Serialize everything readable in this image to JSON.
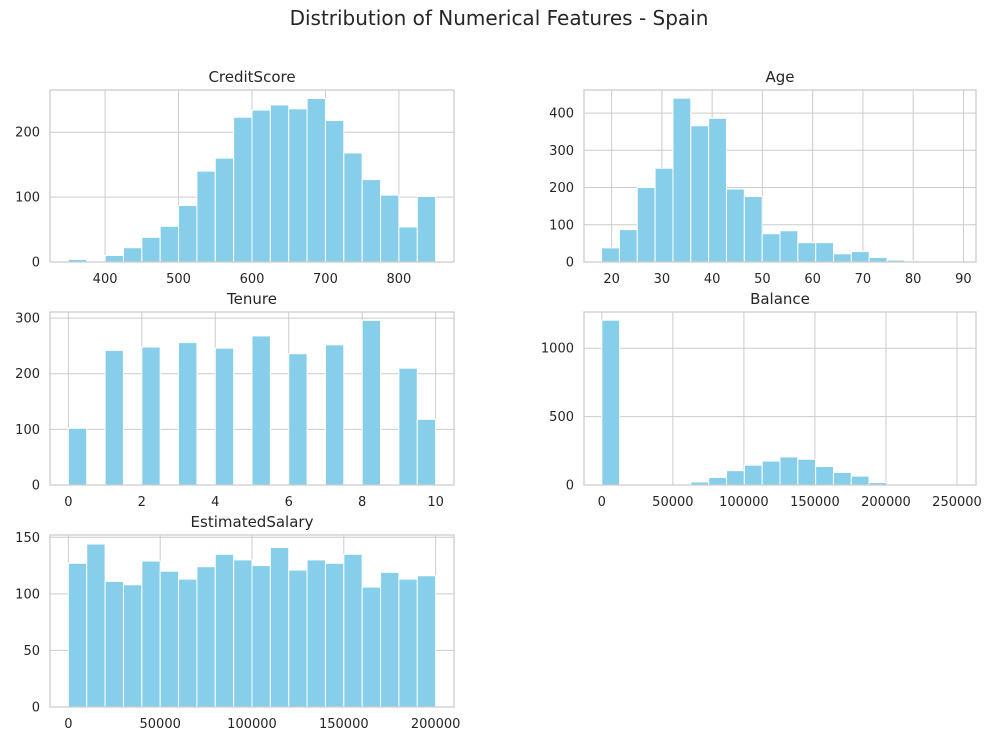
{
  "figure": {
    "title": "Distribution of Numerical Features - Spain",
    "bar_color": "#87CEEB",
    "grid_color": "#cccccc",
    "spine_color": "#cccccc"
  },
  "chart_data": [
    {
      "type": "bar",
      "title": "CreditScore",
      "bin_edges": [
        350,
        375,
        400,
        425,
        450,
        475,
        500,
        525,
        550,
        575,
        600,
        625,
        650,
        675,
        700,
        725,
        750,
        775,
        800,
        825,
        850
      ],
      "values": [
        4,
        0,
        10,
        22,
        38,
        55,
        87,
        140,
        160,
        223,
        234,
        242,
        236,
        252,
        218,
        168,
        127,
        103,
        54,
        101
      ],
      "xlim": [
        325,
        875
      ],
      "ylim": [
        0,
        265
      ],
      "xticks": [
        400,
        500,
        600,
        700,
        800
      ],
      "yticks": [
        0,
        100,
        200
      ],
      "grid": true
    },
    {
      "type": "bar",
      "title": "Age",
      "bin_edges": [
        18,
        21.55,
        25.1,
        28.65,
        32.2,
        35.75,
        39.3,
        42.85,
        46.4,
        49.95,
        53.5,
        57.05,
        60.6,
        64.15,
        67.7,
        71.25,
        74.8,
        78.35,
        81.9,
        85.45,
        89
      ],
      "values": [
        38,
        87,
        200,
        252,
        440,
        366,
        386,
        196,
        176,
        76,
        84,
        52,
        52,
        22,
        28,
        12,
        5,
        3,
        2,
        2
      ],
      "xlim": [
        14.5,
        92.5
      ],
      "ylim": [
        0,
        462
      ],
      "xticks": [
        20,
        30,
        40,
        50,
        60,
        70,
        80,
        90
      ],
      "yticks": [
        0,
        100,
        200,
        300,
        400
      ],
      "grid": true
    },
    {
      "type": "bar",
      "title": "Tenure",
      "bin_edges": [
        0,
        0.5,
        1,
        1.5,
        2,
        2.5,
        3,
        3.5,
        4,
        4.5,
        5,
        5.5,
        6,
        6.5,
        7,
        7.5,
        8,
        8.5,
        9,
        9.5,
        10
      ],
      "values": [
        102,
        0,
        242,
        0,
        248,
        0,
        256,
        0,
        246,
        0,
        268,
        0,
        236,
        0,
        252,
        0,
        296,
        0,
        210,
        118
      ],
      "xlim": [
        -0.5,
        10.5
      ],
      "ylim": [
        0,
        311
      ],
      "xticks": [
        0,
        2,
        4,
        6,
        8,
        10
      ],
      "yticks": [
        0,
        100,
        200,
        300
      ],
      "grid": true
    },
    {
      "type": "bar",
      "title": "Balance",
      "bin_edges": [
        0,
        12542,
        25083,
        37625,
        50166,
        62708,
        75249,
        87791,
        100332,
        112874,
        125415,
        137957,
        150498,
        163040,
        175581,
        188123,
        200664,
        213206,
        225747,
        238289,
        250830
      ],
      "values": [
        1205,
        0,
        0,
        0,
        0,
        22,
        55,
        105,
        145,
        175,
        205,
        188,
        135,
        92,
        65,
        18,
        3,
        2,
        0,
        1
      ],
      "xlim": [
        -12542,
        263372
      ],
      "ylim": [
        0,
        1265
      ],
      "xticks": [
        0,
        50000,
        100000,
        150000,
        200000,
        250000
      ],
      "yticks": [
        0,
        500,
        1000
      ],
      "grid": true
    },
    {
      "type": "bar",
      "title": "EstimatedSalary",
      "bin_edges": [
        0,
        10000,
        20000,
        30000,
        40000,
        50000,
        60000,
        70000,
        80000,
        90000,
        100000,
        110000,
        120000,
        130000,
        140000,
        150000,
        160000,
        170000,
        180000,
        190000,
        200000
      ],
      "values": [
        127,
        144,
        111,
        108,
        129,
        120,
        113,
        124,
        135,
        130,
        125,
        141,
        121,
        130,
        127,
        135,
        106,
        119,
        113,
        116
      ],
      "xlim": [
        -10000,
        210000
      ],
      "ylim": [
        0,
        152
      ],
      "xticks": [
        0,
        50000,
        100000,
        150000,
        200000
      ],
      "yticks": [
        0,
        50,
        100,
        150
      ],
      "grid": true
    }
  ]
}
